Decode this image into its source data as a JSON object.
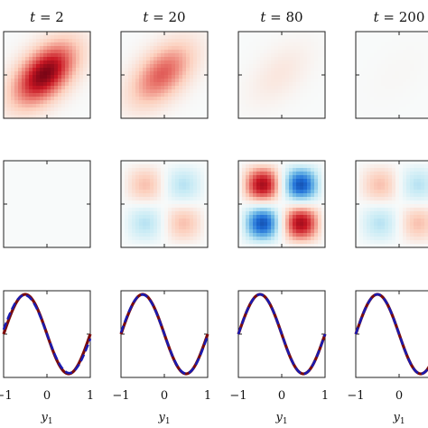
{
  "chart_data": {
    "type": "heatmap",
    "grid": false,
    "columns": [
      {
        "t_label": "t",
        "t_value": "2"
      },
      {
        "t_label": "t",
        "t_value": "20"
      },
      {
        "t_label": "t",
        "t_value": "80"
      },
      {
        "t_label": "t",
        "t_value": "200"
      }
    ],
    "row1_heatmaps": {
      "description_values": "single positive blob (red) amplitude",
      "amplitude": [
        1.0,
        0.6,
        0.12,
        0.02
      ],
      "colormap": "blue-white-red"
    },
    "row2_heatmaps": {
      "pattern": "checkerboard 2x2 (sin*sin)",
      "amplitude": [
        0.0,
        0.35,
        1.0,
        0.35
      ],
      "colormap": "blue-white-red"
    },
    "row3_lines": {
      "type": "line",
      "x_range": [
        -1,
        1
      ],
      "xticks": [
        "−1",
        "0",
        "1"
      ],
      "xlabel": "y",
      "xlabel_sub": "1",
      "series": [
        {
          "style": "solid",
          "color": "#7b0b0b"
        },
        {
          "style": "dashed",
          "color": "#1a1ab0"
        }
      ],
      "dashed_deviation": [
        0.18,
        0.06,
        0.0,
        0.0
      ]
    }
  }
}
